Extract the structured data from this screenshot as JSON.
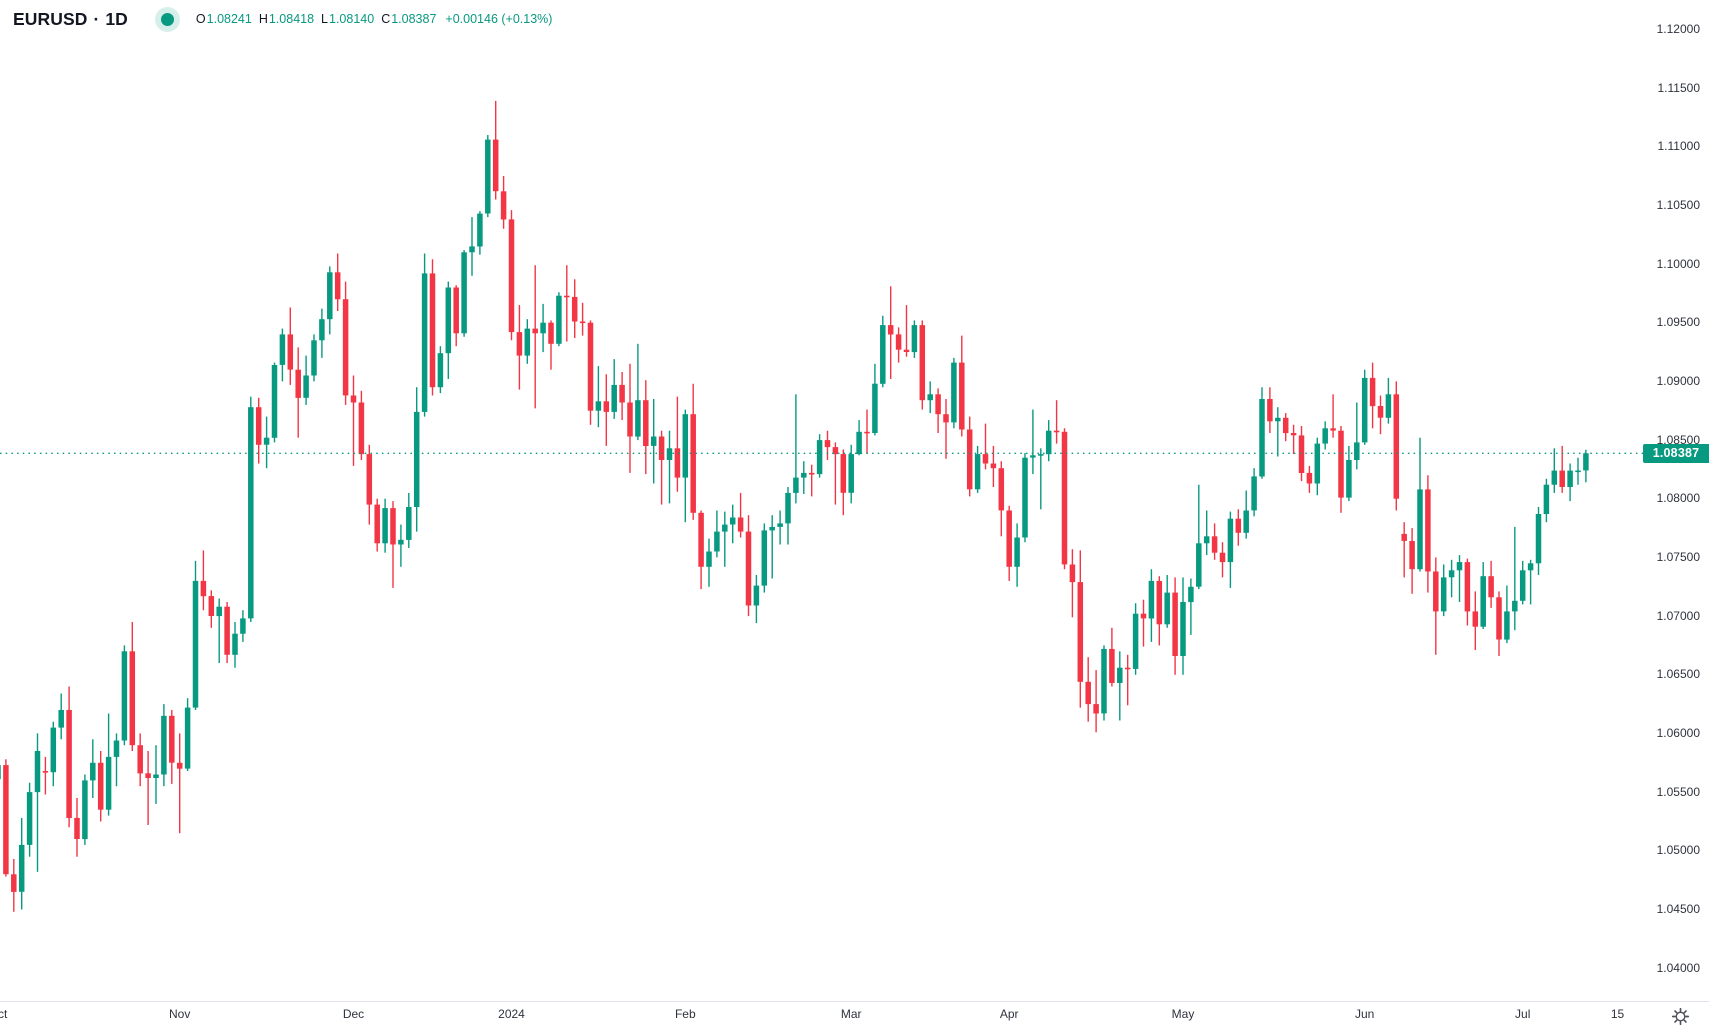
{
  "header": {
    "symbol": "EURUSD",
    "separator": "·",
    "interval": "1D",
    "ohlc": {
      "o_label": "O",
      "o": "1.08241",
      "h_label": "H",
      "h": "1.08418",
      "l_label": "L",
      "l": "1.08140",
      "c_label": "C",
      "c": "1.08387",
      "change": "+0.00146 (+0.13%)"
    }
  },
  "colors": {
    "up": "#089981",
    "down": "#f23645",
    "accent": "#089981",
    "text": "#131722",
    "axis_text": "#2f333d",
    "axis_line": "#e0e3eb",
    "price_tag_bg": "#089981",
    "price_tag_text": "#ffffff",
    "status_dot": "#089981"
  },
  "price_axis": {
    "labels": [
      "1.12000",
      "1.11500",
      "1.11000",
      "1.10500",
      "1.10000",
      "1.09500",
      "1.09000",
      "1.08500",
      "1.08000",
      "1.07500",
      "1.07000",
      "1.06500",
      "1.06000",
      "1.05500",
      "1.05000",
      "1.04500",
      "1.04000"
    ],
    "last_price": "1.08387"
  },
  "time_axis": {
    "ticks": [
      {
        "label": "Oct",
        "index": 0
      },
      {
        "label": "Nov",
        "index": 23
      },
      {
        "label": "Dec",
        "index": 45
      },
      {
        "label": "2024",
        "index": 65
      },
      {
        "label": "Feb",
        "index": 87
      },
      {
        "label": "Mar",
        "index": 108
      },
      {
        "label": "Apr",
        "index": 128
      },
      {
        "label": "May",
        "index": 150
      },
      {
        "label": "Jun",
        "index": 173
      },
      {
        "label": "Jul",
        "index": 193
      },
      {
        "label": "15",
        "index": 205
      }
    ]
  },
  "chart_data": {
    "type": "candlestick",
    "title": "EURUSD · 1D",
    "symbol": "EURUSD",
    "interval": "1D",
    "grid": false,
    "legend_position": "top-left",
    "y_axis": {
      "side": "right",
      "min": 1.0372,
      "max": 1.1225,
      "tick_step": 0.005
    },
    "x_axis": {
      "start": "Oct 2023",
      "end": "Jul 2024",
      "unit": "trading-day"
    },
    "last_close": 1.08387,
    "last_candle": {
      "open": 1.08241,
      "high": 1.08418,
      "low": 1.0814,
      "close": 1.08387,
      "change": 0.00146,
      "change_pct": 0.13
    },
    "candles": [
      [
        1.0561,
        1.0578,
        1.0549,
        1.0573
      ],
      [
        1.0573,
        1.0578,
        1.0478,
        1.048
      ],
      [
        1.048,
        1.0493,
        1.0448,
        1.0465
      ],
      [
        1.0465,
        1.0528,
        1.045,
        1.0505
      ],
      [
        1.0505,
        1.0558,
        1.0495,
        1.055
      ],
      [
        1.055,
        1.06,
        1.0482,
        1.0585
      ],
      [
        1.0568,
        1.058,
        1.0548,
        1.0567
      ],
      [
        1.0567,
        1.061,
        1.0555,
        1.0605
      ],
      [
        1.0605,
        1.0634,
        1.0595,
        1.062
      ],
      [
        1.062,
        1.064,
        1.052,
        1.0528
      ],
      [
        1.0528,
        1.0545,
        1.0495,
        1.051
      ],
      [
        1.051,
        1.0565,
        1.0505,
        1.056
      ],
      [
        1.056,
        1.0595,
        1.0545,
        1.0575
      ],
      [
        1.0575,
        1.0585,
        1.0525,
        1.0535
      ],
      [
        1.0535,
        1.0617,
        1.053,
        1.058
      ],
      [
        1.058,
        1.06,
        1.0555,
        1.0594
      ],
      [
        1.0594,
        1.0675,
        1.059,
        1.067
      ],
      [
        1.067,
        1.0695,
        1.0585,
        1.059
      ],
      [
        1.059,
        1.06,
        1.0555,
        1.0566
      ],
      [
        1.0566,
        1.0585,
        1.0522,
        1.0562
      ],
      [
        1.0562,
        1.059,
        1.054,
        1.0565
      ],
      [
        1.0565,
        1.0625,
        1.0555,
        1.0615
      ],
      [
        1.0615,
        1.062,
        1.0557,
        1.0575
      ],
      [
        1.0575,
        1.06,
        1.0515,
        1.057
      ],
      [
        1.057,
        1.063,
        1.0568,
        1.0622
      ],
      [
        1.0622,
        1.0747,
        1.062,
        1.073
      ],
      [
        1.073,
        1.0756,
        1.0705,
        1.0717
      ],
      [
        1.0717,
        1.0722,
        1.069,
        1.07
      ],
      [
        1.07,
        1.0715,
        1.066,
        1.0708
      ],
      [
        1.0708,
        1.0712,
        1.066,
        1.0667
      ],
      [
        1.0667,
        1.0695,
        1.0656,
        1.0685
      ],
      [
        1.0685,
        1.0705,
        1.0678,
        1.0698
      ],
      [
        1.0698,
        1.0887,
        1.0695,
        1.0878
      ],
      [
        1.0878,
        1.0886,
        1.083,
        1.0846
      ],
      [
        1.0846,
        1.087,
        1.0826,
        1.0852
      ],
      [
        1.0852,
        1.0916,
        1.0848,
        1.0914
      ],
      [
        1.0914,
        1.0945,
        1.09,
        1.094
      ],
      [
        1.094,
        1.0963,
        1.0897,
        1.091
      ],
      [
        1.091,
        1.0929,
        1.0852,
        1.0886
      ],
      [
        1.0886,
        1.0922,
        1.088,
        1.0905
      ],
      [
        1.0905,
        1.094,
        1.09,
        1.0935
      ],
      [
        1.0935,
        1.0962,
        1.092,
        1.0953
      ],
      [
        1.0953,
        1.0998,
        1.094,
        1.0993
      ],
      [
        1.0993,
        1.1009,
        1.096,
        1.097
      ],
      [
        1.097,
        1.0985,
        1.088,
        1.0888
      ],
      [
        1.0888,
        1.0905,
        1.0828,
        1.0882
      ],
      [
        1.0882,
        1.0892,
        1.0833,
        1.0838
      ],
      [
        1.0838,
        1.0846,
        1.0778,
        1.0795
      ],
      [
        1.0795,
        1.08,
        1.0755,
        1.0762
      ],
      [
        1.0762,
        1.08,
        1.0754,
        1.0792
      ],
      [
        1.0792,
        1.0798,
        1.0724,
        1.0761
      ],
      [
        1.0761,
        1.0778,
        1.0742,
        1.0765
      ],
      [
        1.0765,
        1.0805,
        1.0758,
        1.0793
      ],
      [
        1.0793,
        1.0895,
        1.0772,
        1.0874
      ],
      [
        1.0874,
        1.1009,
        1.087,
        1.0992
      ],
      [
        1.0992,
        1.1004,
        1.0888,
        1.0895
      ],
      [
        1.0895,
        1.093,
        1.089,
        1.0924
      ],
      [
        1.0924,
        1.0985,
        1.0902,
        1.098
      ],
      [
        1.098,
        1.0982,
        1.093,
        1.0941
      ],
      [
        1.0941,
        1.1012,
        1.0938,
        1.101
      ],
      [
        1.101,
        1.104,
        1.099,
        1.1015
      ],
      [
        1.1015,
        1.1045,
        1.1008,
        1.1043
      ],
      [
        1.1043,
        1.111,
        1.104,
        1.1106
      ],
      [
        1.1106,
        1.1139,
        1.1055,
        1.1062
      ],
      [
        1.1062,
        1.1075,
        1.103,
        1.1038
      ],
      [
        1.1038,
        1.1046,
        1.0935,
        1.0942
      ],
      [
        1.0942,
        1.0965,
        1.0893,
        1.0922
      ],
      [
        1.0922,
        1.0953,
        1.0915,
        1.0945
      ],
      [
        1.0945,
        1.0999,
        1.0877,
        1.0941
      ],
      [
        1.0941,
        1.0966,
        1.0925,
        1.095
      ],
      [
        1.095,
        1.0952,
        1.091,
        1.0932
      ],
      [
        1.0932,
        1.0976,
        1.093,
        1.0973
      ],
      [
        1.0973,
        1.0999,
        1.0934,
        1.0972
      ],
      [
        1.0972,
        1.0987,
        1.0937,
        1.0951
      ],
      [
        1.0951,
        1.0967,
        1.0939,
        1.095
      ],
      [
        1.095,
        1.0952,
        1.0863,
        1.0875
      ],
      [
        1.0875,
        1.0913,
        1.0861,
        1.0883
      ],
      [
        1.0883,
        1.0906,
        1.0845,
        1.0874
      ],
      [
        1.0874,
        1.0919,
        1.0868,
        1.0897
      ],
      [
        1.0897,
        1.0908,
        1.0867,
        1.0882
      ],
      [
        1.0882,
        1.0915,
        1.0822,
        1.0853
      ],
      [
        1.0853,
        1.0932,
        1.085,
        1.0884
      ],
      [
        1.0884,
        1.0901,
        1.0821,
        1.0845
      ],
      [
        1.0845,
        1.0885,
        1.0813,
        1.0853
      ],
      [
        1.0853,
        1.0858,
        1.0795,
        1.0833
      ],
      [
        1.0833,
        1.0858,
        1.0796,
        1.0843
      ],
      [
        1.0843,
        1.0887,
        1.0806,
        1.0818
      ],
      [
        1.0818,
        1.0876,
        1.078,
        1.0872
      ],
      [
        1.0872,
        1.0898,
        1.0782,
        1.0788
      ],
      [
        1.0788,
        1.079,
        1.0723,
        1.0742
      ],
      [
        1.0742,
        1.0766,
        1.0725,
        1.0755
      ],
      [
        1.0755,
        1.079,
        1.075,
        1.0772
      ],
      [
        1.0772,
        1.0789,
        1.0742,
        1.0778
      ],
      [
        1.0778,
        1.0795,
        1.0762,
        1.0784
      ],
      [
        1.0784,
        1.0805,
        1.0767,
        1.0772
      ],
      [
        1.0772,
        1.0786,
        1.07,
        1.0709
      ],
      [
        1.0709,
        1.0735,
        1.0694,
        1.0726
      ],
      [
        1.0726,
        1.0779,
        1.072,
        1.0773
      ],
      [
        1.0773,
        1.0786,
        1.0732,
        1.0776
      ],
      [
        1.0776,
        1.079,
        1.0761,
        1.0779
      ],
      [
        1.0779,
        1.081,
        1.0761,
        1.0805
      ],
      [
        1.0805,
        1.0889,
        1.0796,
        1.0818
      ],
      [
        1.0818,
        1.0832,
        1.0804,
        1.0822
      ],
      [
        1.0822,
        1.0829,
        1.0802,
        1.0821
      ],
      [
        1.0821,
        1.0855,
        1.0818,
        1.085
      ],
      [
        1.085,
        1.0858,
        1.0833,
        1.0844
      ],
      [
        1.0844,
        1.0848,
        1.0795,
        1.0838
      ],
      [
        1.0838,
        1.0842,
        1.0786,
        1.0805
      ],
      [
        1.0805,
        1.0846,
        1.0796,
        1.0838
      ],
      [
        1.0838,
        1.0867,
        1.0837,
        1.0857
      ],
      [
        1.0857,
        1.0876,
        1.0838,
        1.0856
      ],
      [
        1.0856,
        1.0915,
        1.0854,
        1.0898
      ],
      [
        1.0898,
        1.0956,
        1.0895,
        1.0948
      ],
      [
        1.0948,
        1.0981,
        1.0902,
        1.094
      ],
      [
        1.094,
        1.0946,
        1.0916,
        1.0927
      ],
      [
        1.0927,
        1.0965,
        1.0921,
        1.0925
      ],
      [
        1.0925,
        1.0952,
        1.092,
        1.0948
      ],
      [
        1.0948,
        1.0952,
        1.0876,
        1.0884
      ],
      [
        1.0884,
        1.09,
        1.0873,
        1.0889
      ],
      [
        1.0889,
        1.0894,
        1.0856,
        1.0872
      ],
      [
        1.0872,
        1.0885,
        1.0834,
        1.0865
      ],
      [
        1.0865,
        1.092,
        1.086,
        1.0916
      ],
      [
        1.0916,
        1.0939,
        1.0853,
        1.0859
      ],
      [
        1.0859,
        1.087,
        1.0802,
        1.0808
      ],
      [
        1.0808,
        1.0845,
        1.0805,
        1.0838
      ],
      [
        1.0838,
        1.0864,
        1.0825,
        1.083
      ],
      [
        1.083,
        1.0845,
        1.081,
        1.0826
      ],
      [
        1.0826,
        1.0832,
        1.0768,
        1.079
      ],
      [
        1.079,
        1.0794,
        1.073,
        1.0742
      ],
      [
        1.0742,
        1.0779,
        1.0725,
        1.0767
      ],
      [
        1.0767,
        1.0839,
        1.0763,
        1.0835
      ],
      [
        1.0835,
        1.0876,
        1.0821,
        1.0837
      ],
      [
        1.0837,
        1.0843,
        1.0791,
        1.0838
      ],
      [
        1.0838,
        1.0867,
        1.0832,
        1.0858
      ],
      [
        1.0858,
        1.0884,
        1.0847,
        1.0857
      ],
      [
        1.0857,
        1.086,
        1.074,
        1.0744
      ],
      [
        1.0744,
        1.0757,
        1.0699,
        1.0729
      ],
      [
        1.0729,
        1.0756,
        1.0622,
        1.0644
      ],
      [
        1.0644,
        1.0665,
        1.061,
        1.0625
      ],
      [
        1.0625,
        1.0654,
        1.0601,
        1.0617
      ],
      [
        1.0617,
        1.0675,
        1.0611,
        1.0672
      ],
      [
        1.0672,
        1.069,
        1.064,
        1.0643
      ],
      [
        1.0643,
        1.067,
        1.0611,
        1.0656
      ],
      [
        1.0656,
        1.0667,
        1.0624,
        1.0655
      ],
      [
        1.0655,
        1.0711,
        1.065,
        1.0702
      ],
      [
        1.0702,
        1.0714,
        1.0674,
        1.0698
      ],
      [
        1.0698,
        1.074,
        1.0678,
        1.073
      ],
      [
        1.073,
        1.0734,
        1.0675,
        1.0693
      ],
      [
        1.0693,
        1.0735,
        1.069,
        1.072
      ],
      [
        1.072,
        1.0733,
        1.065,
        1.0666
      ],
      [
        1.0666,
        1.0733,
        1.065,
        1.0712
      ],
      [
        1.0712,
        1.0732,
        1.0684,
        1.0725
      ],
      [
        1.0725,
        1.0812,
        1.0723,
        1.0762
      ],
      [
        1.0762,
        1.079,
        1.0752,
        1.0768
      ],
      [
        1.0768,
        1.0779,
        1.0748,
        1.0754
      ],
      [
        1.0754,
        1.0763,
        1.0733,
        1.0746
      ],
      [
        1.0746,
        1.0789,
        1.0724,
        1.0783
      ],
      [
        1.0783,
        1.0791,
        1.076,
        1.0771
      ],
      [
        1.0771,
        1.0807,
        1.0766,
        1.079
      ],
      [
        1.079,
        1.0826,
        1.0785,
        1.0819
      ],
      [
        1.0819,
        1.0895,
        1.0817,
        1.0885
      ],
      [
        1.0885,
        1.0895,
        1.0856,
        1.0866
      ],
      [
        1.0866,
        1.0878,
        1.0836,
        1.0869
      ],
      [
        1.0869,
        1.0873,
        1.0849,
        1.0856
      ],
      [
        1.0856,
        1.0863,
        1.0838,
        1.0854
      ],
      [
        1.0854,
        1.0862,
        1.0815,
        1.0822
      ],
      [
        1.0822,
        1.0828,
        1.0805,
        1.0813
      ],
      [
        1.0813,
        1.0852,
        1.0803,
        1.0847
      ],
      [
        1.0847,
        1.0866,
        1.0842,
        1.086
      ],
      [
        1.086,
        1.0889,
        1.0852,
        1.0858
      ],
      [
        1.0858,
        1.0862,
        1.0788,
        1.0801
      ],
      [
        1.0801,
        1.0845,
        1.0798,
        1.0833
      ],
      [
        1.0833,
        1.0882,
        1.0825,
        1.0848
      ],
      [
        1.0848,
        1.091,
        1.0846,
        1.0903
      ],
      [
        1.0903,
        1.0916,
        1.086,
        1.0879
      ],
      [
        1.0879,
        1.0888,
        1.0855,
        1.0869
      ],
      [
        1.0869,
        1.0903,
        1.0864,
        1.0889
      ],
      [
        1.0889,
        1.09,
        1.079,
        1.08
      ],
      [
        1.077,
        1.078,
        1.0733,
        1.0764
      ],
      [
        1.0764,
        1.0775,
        1.0719,
        1.074
      ],
      [
        1.074,
        1.0852,
        1.0738,
        1.0808
      ],
      [
        1.0808,
        1.082,
        1.072,
        1.0738
      ],
      [
        1.0738,
        1.075,
        1.0667,
        1.0704
      ],
      [
        1.0704,
        1.0744,
        1.07,
        1.0733
      ],
      [
        1.0733,
        1.0748,
        1.0716,
        1.0739
      ],
      [
        1.0739,
        1.0752,
        1.0712,
        1.0746
      ],
      [
        1.0746,
        1.0749,
        1.0692,
        1.0704
      ],
      [
        1.0704,
        1.0721,
        1.0671,
        1.0691
      ],
      [
        1.0691,
        1.0746,
        1.0689,
        1.0734
      ],
      [
        1.0734,
        1.0747,
        1.0707,
        1.0716
      ],
      [
        1.0716,
        1.0721,
        1.0666,
        1.068
      ],
      [
        1.068,
        1.0726,
        1.0677,
        1.0704
      ],
      [
        1.0704,
        1.0776,
        1.0688,
        1.0713
      ],
      [
        1.0713,
        1.0747,
        1.071,
        1.0739
      ],
      [
        1.0739,
        1.0748,
        1.071,
        1.0745
      ],
      [
        1.0745,
        1.0793,
        1.0735,
        1.0787
      ],
      [
        1.0787,
        1.0817,
        1.078,
        1.0812
      ],
      [
        1.0812,
        1.0843,
        1.0805,
        1.0824
      ],
      [
        1.0824,
        1.0845,
        1.0805,
        1.081
      ],
      [
        1.081,
        1.083,
        1.0798,
        1.0824
      ],
      [
        1.0824,
        1.0835,
        1.0812,
        1.08241
      ],
      [
        1.08241,
        1.08418,
        1.0814,
        1.08387
      ]
    ]
  }
}
